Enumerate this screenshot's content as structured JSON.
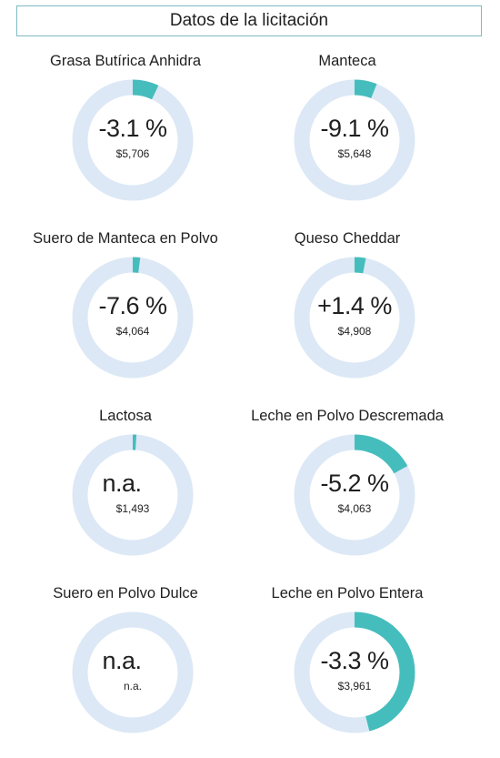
{
  "header": {
    "title": "Datos de la licitación"
  },
  "colors": {
    "track": "#dce8f5",
    "fill": "#46bdbd"
  },
  "chart_data": {
    "type": "donut",
    "items": [
      {
        "name": "Grasa Butírica Anhidra",
        "change": "-3.1 %",
        "value": "$5,706",
        "fill_fraction": 0.07
      },
      {
        "name": "Manteca",
        "change": "-9.1 %",
        "value": "$5,648",
        "fill_fraction": 0.06
      },
      {
        "name": "Suero de Manteca en Polvo",
        "change": "-7.6 %",
        "value": "$4,064",
        "fill_fraction": 0.02
      },
      {
        "name": "Queso Cheddar",
        "change": "+1.4 %",
        "value": "$4,908",
        "fill_fraction": 0.03
      },
      {
        "name": "Lactosa",
        "change": "n.a.",
        "value": "$1,493",
        "fill_fraction": 0.01
      },
      {
        "name": "Leche en Polvo Descremada",
        "change": "-5.2 %",
        "value": "$4,063",
        "fill_fraction": 0.17
      },
      {
        "name": "Suero en Polvo Dulce",
        "change": "n.a.",
        "value": "n.a.",
        "fill_fraction": 0
      },
      {
        "name": "Leche en Polvo Entera",
        "change": "-3.3 %",
        "value": "$3,961",
        "fill_fraction": 0.46
      }
    ]
  }
}
